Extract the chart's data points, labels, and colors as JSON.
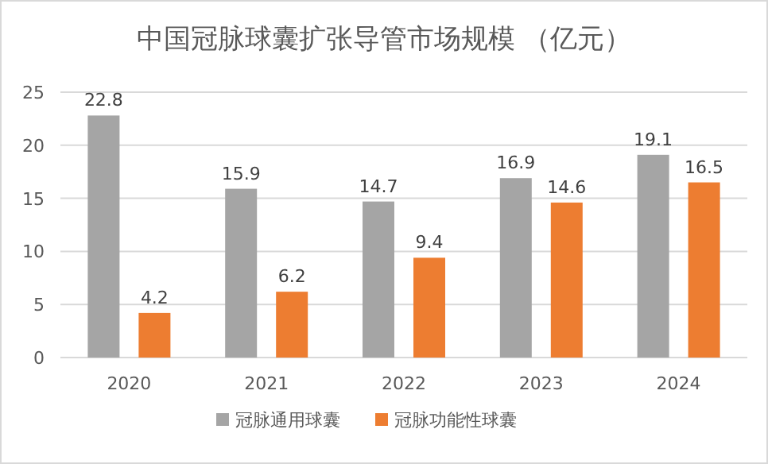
{
  "chart_data": {
    "type": "bar",
    "title": "中国冠脉球囊扩张导管市场规模 （亿元）",
    "categories": [
      "2020",
      "2021",
      "2022",
      "2023",
      "2024"
    ],
    "series": [
      {
        "name": "冠脉通用球囊",
        "color": "#a5a5a5",
        "values": [
          22.8,
          15.9,
          14.7,
          16.9,
          19.1
        ]
      },
      {
        "name": "冠脉功能性球囊",
        "color": "#ed7d31",
        "values": [
          4.2,
          6.2,
          9.4,
          14.6,
          16.5
        ]
      }
    ],
    "ylim": [
      0,
      25
    ],
    "yticks": [
      0,
      5,
      10,
      15,
      20,
      25
    ],
    "grid": "y",
    "legend": "bottom",
    "data_labels": true
  }
}
